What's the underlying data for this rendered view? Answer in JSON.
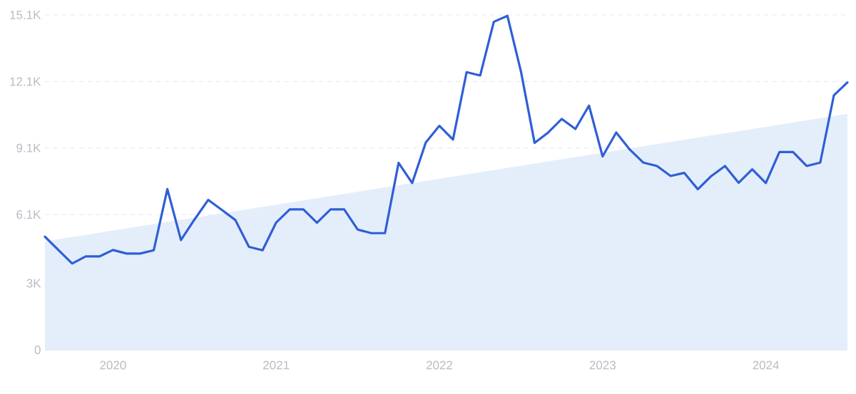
{
  "chart_data": {
    "type": "line",
    "x": [
      "2019-08",
      "2019-09",
      "2019-10",
      "2019-11",
      "2019-12",
      "2020-01",
      "2020-02",
      "2020-03",
      "2020-04",
      "2020-05",
      "2020-06",
      "2020-07",
      "2020-08",
      "2020-09",
      "2020-10",
      "2020-11",
      "2020-12",
      "2021-01",
      "2021-02",
      "2021-03",
      "2021-04",
      "2021-05",
      "2021-06",
      "2021-07",
      "2021-08",
      "2021-09",
      "2021-10",
      "2021-11",
      "2021-12",
      "2022-01",
      "2022-02",
      "2022-03",
      "2022-04",
      "2022-05",
      "2022-06",
      "2022-07",
      "2022-08",
      "2022-09",
      "2022-10",
      "2022-11",
      "2022-12",
      "2023-01",
      "2023-02",
      "2023-03",
      "2023-04",
      "2023-05",
      "2023-06",
      "2023-07",
      "2023-08",
      "2023-09",
      "2023-10",
      "2023-11",
      "2023-12",
      "2024-01",
      "2024-02",
      "2024-03",
      "2024-04",
      "2024-05",
      "2024-06",
      "2024-07"
    ],
    "series": [
      {
        "type": "area",
        "x": [
          "2019-08",
          "2024-07"
        ],
        "values": [
          4890,
          10640
        ],
        "color": "#e4eefb"
      },
      {
        "color": "#2f5fd6",
        "values": [
          5100,
          4490,
          3890,
          4210,
          4210,
          4500,
          4340,
          4340,
          4490,
          7250,
          4950,
          5880,
          6760,
          6310,
          5850,
          4640,
          4490,
          5740,
          6330,
          6330,
          5730,
          6330,
          6330,
          5420,
          5260,
          5260,
          8430,
          7520,
          9350,
          10100,
          9480,
          12520,
          12370,
          14790,
          15060,
          12540,
          9330,
          9800,
          10410,
          9960,
          11010,
          8720,
          9800,
          9030,
          8440,
          8290,
          7840,
          7980,
          7240,
          7840,
          8290,
          7530,
          8140,
          7520,
          8920,
          8920,
          8290,
          8440,
          11470,
          12060
        ]
      }
    ],
    "xlim": [
      "2019-08",
      "2024-07"
    ],
    "xticks": [
      {
        "value": "2020-01",
        "label": "2020"
      },
      {
        "value": "2021-01",
        "label": "2021"
      },
      {
        "value": "2022-01",
        "label": "2022"
      },
      {
        "value": "2023-01",
        "label": "2023"
      },
      {
        "value": "2024-01",
        "label": "2024"
      }
    ],
    "ylim": [
      0,
      15100
    ],
    "yticks": [
      0,
      {
        "value": 3000,
        "label": "3K"
      },
      {
        "value": 6100,
        "label": "6.1K"
      },
      {
        "value": 9100,
        "label": "9.1K"
      },
      {
        "value": 12100,
        "label": "12.1K"
      },
      {
        "value": 15100,
        "label": "15.1K"
      }
    ],
    "grid": "y",
    "marker": "none"
  }
}
